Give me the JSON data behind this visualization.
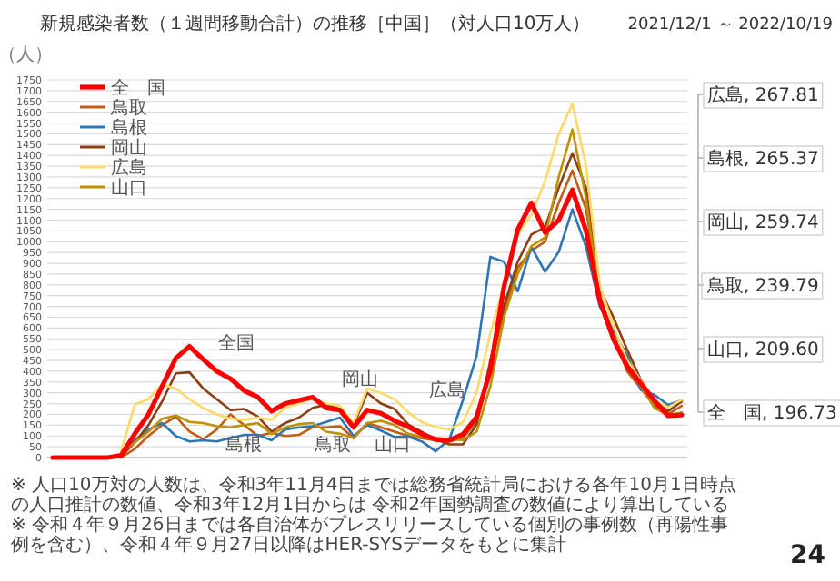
{
  "chart_data": {
    "type": "line",
    "title": "新規感染者数（１週間移動合計）の推移［中国］（対人口10万人）",
    "subtitle": "2021/12/1 ～ 2022/10/19",
    "ylabel": "（人）",
    "categories": [
      null,
      null,
      null,
      null,
      null,
      null,
      null,
      null,
      null,
      null,
      null,
      null,
      null,
      null,
      null,
      null,
      null,
      null,
      null,
      null,
      null,
      null,
      null,
      null,
      null,
      null,
      null,
      null,
      null,
      null,
      null,
      null,
      null,
      null,
      null,
      null,
      null,
      null,
      null,
      null,
      null,
      null,
      null,
      null,
      null,
      null,
      null
    ],
    "series": [
      {
        "name": "全　国",
        "color": "#ff0000",
        "values": [
          0,
          0,
          0,
          0,
          0,
          10,
          110,
          200,
          330,
          460,
          515,
          455,
          400,
          365,
          310,
          280,
          215,
          250,
          265,
          280,
          230,
          220,
          140,
          220,
          205,
          170,
          142,
          108,
          84,
          80,
          108,
          188,
          405,
          793,
          1056,
          1180,
          1043,
          1100,
          1240,
          1050,
          727,
          549,
          423,
          343,
          263,
          194,
          196.73
        ]
      },
      {
        "name": "鳥取",
        "color": "#c55a11",
        "values": [
          null,
          null,
          null,
          null,
          null,
          0,
          40,
          100,
          150,
          190,
          120,
          85,
          130,
          200,
          150,
          100,
          115,
          100,
          105,
          140,
          140,
          145,
          90,
          160,
          140,
          120,
          100,
          90,
          80,
          75,
          90,
          170,
          420,
          680,
          880,
          960,
          1000,
          1180,
          1330,
          1150,
          750,
          570,
          400,
          320,
          240,
          200,
          239.79
        ]
      },
      {
        "name": "島根",
        "color": "#2e75b6",
        "values": [
          null,
          null,
          null,
          null,
          null,
          10,
          80,
          130,
          160,
          100,
          75,
          80,
          75,
          90,
          105,
          105,
          80,
          130,
          140,
          145,
          165,
          185,
          100,
          150,
          125,
          95,
          97,
          74,
          29,
          84,
          267,
          473,
          930,
          907,
          770,
          976,
          861,
          953,
          1150,
          976,
          700,
          587,
          473,
          313,
          290,
          244,
          265.37
        ]
      },
      {
        "name": "岡山",
        "color": "#8b3f12",
        "values": [
          null,
          null,
          null,
          null,
          null,
          5,
          70,
          150,
          260,
          390,
          395,
          320,
          270,
          220,
          225,
          190,
          120,
          160,
          185,
          230,
          245,
          225,
          150,
          300,
          250,
          225,
          153,
          118,
          84,
          61,
          61,
          153,
          450,
          702,
          907,
          1033,
          1067,
          1250,
          1410,
          1250,
          780,
          650,
          500,
          360,
          260,
          215,
          259.74
        ]
      },
      {
        "name": "広島",
        "color": "#ffd966",
        "values": [
          null,
          null,
          null,
          null,
          null,
          30,
          246,
          270,
          340,
          320,
          270,
          230,
          200,
          180,
          175,
          185,
          175,
          230,
          250,
          275,
          250,
          240,
          160,
          320,
          300,
          270,
          210,
          164,
          141,
          130,
          164,
          302,
          576,
          805,
          1034,
          1125,
          1280,
          1500,
          1640,
          1350,
          796,
          610,
          450,
          358,
          267,
          233,
          267.81
        ]
      },
      {
        "name": "山口",
        "color": "#bf9000",
        "values": [
          null,
          null,
          null,
          null,
          null,
          20,
          70,
          120,
          180,
          195,
          165,
          160,
          145,
          140,
          150,
          160,
          110,
          140,
          155,
          160,
          120,
          110,
          90,
          160,
          170,
          150,
          110,
          95,
          90,
          85,
          80,
          120,
          330,
          650,
          850,
          980,
          1020,
          1300,
          1520,
          1200,
          720,
          560,
          420,
          330,
          230,
          195,
          209.6
        ]
      }
    ],
    "ylim": [
      0,
      1750
    ],
    "yticks": [
      0,
      50,
      100,
      150,
      200,
      250,
      300,
      350,
      400,
      450,
      500,
      550,
      600,
      650,
      700,
      750,
      800,
      850,
      900,
      950,
      1000,
      1050,
      1100,
      1150,
      1200,
      1250,
      1300,
      1350,
      1400,
      1450,
      1500,
      1550,
      1600,
      1650,
      1700,
      1750
    ],
    "grid": "y",
    "legend": "top left",
    "annotations": [
      "全国",
      "島根",
      "鳥取",
      "山口",
      "岡山",
      "広島",
      "広島, 267.81",
      "島根, 265.37",
      "岡山, 259.74",
      "鳥取, 239.79",
      "山口, 209.60",
      "全　国, 196.73",
      "※ 人口10万対の人数は、令和3年11月4日までは総務省統計局における各年10月1日時点の人口推計の数値、令和3年12月1日からは 令和2年国勢調査の数値により算出している",
      "※ 令和４年９月26日までは各自治体がプレスリリースしている個別の事例数（再陽性事例を含む）、令和４年９月27日以降はHER-SYSデータをもとに集計",
      "24"
    ]
  }
}
